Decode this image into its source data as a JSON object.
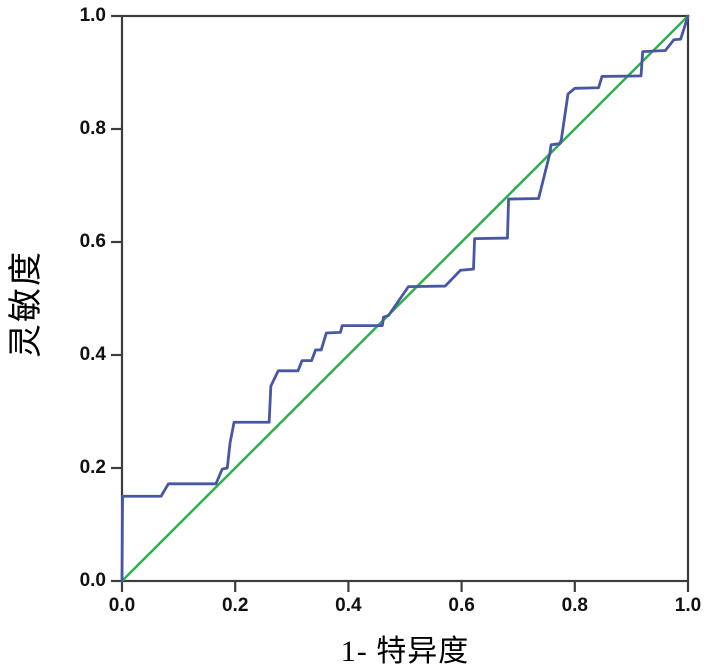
{
  "figure": {
    "background": "#ffffff",
    "axis_color": "#3d3d3d",
    "tick_label_color": "#111111"
  },
  "chart_data": {
    "type": "line",
    "title": "",
    "xlabel": "1- 特异度",
    "ylabel": "灵敏度",
    "xlim": [
      0.0,
      1.0
    ],
    "ylim": [
      0.0,
      1.0
    ],
    "grid": false,
    "legend": "none",
    "x_ticks": [
      "0.0",
      "0.2",
      "0.4",
      "0.6",
      "0.8",
      "1.0"
    ],
    "y_ticks": [
      "0.0",
      "0.2",
      "0.4",
      "0.6",
      "0.8",
      "1.0"
    ],
    "series": [
      {
        "name": "roc-curve",
        "color": "#4757a6",
        "stroke_width": 2.8,
        "points": [
          [
            0.0,
            0.0
          ],
          [
            0.001,
            0.15
          ],
          [
            0.069,
            0.15
          ],
          [
            0.082,
            0.172
          ],
          [
            0.166,
            0.172
          ],
          [
            0.177,
            0.198
          ],
          [
            0.186,
            0.2
          ],
          [
            0.191,
            0.245
          ],
          [
            0.198,
            0.281
          ],
          [
            0.26,
            0.281
          ],
          [
            0.263,
            0.345
          ],
          [
            0.276,
            0.372
          ],
          [
            0.311,
            0.372
          ],
          [
            0.318,
            0.39
          ],
          [
            0.335,
            0.39
          ],
          [
            0.342,
            0.409
          ],
          [
            0.352,
            0.409
          ],
          [
            0.361,
            0.439
          ],
          [
            0.386,
            0.44
          ],
          [
            0.389,
            0.452
          ],
          [
            0.46,
            0.452
          ],
          [
            0.462,
            0.467
          ],
          [
            0.471,
            0.47
          ],
          [
            0.506,
            0.521
          ],
          [
            0.571,
            0.522
          ],
          [
            0.598,
            0.55
          ],
          [
            0.621,
            0.552
          ],
          [
            0.623,
            0.606
          ],
          [
            0.681,
            0.607
          ],
          [
            0.683,
            0.676
          ],
          [
            0.736,
            0.677
          ],
          [
            0.756,
            0.757
          ],
          [
            0.758,
            0.772
          ],
          [
            0.773,
            0.774
          ],
          [
            0.776,
            0.78
          ],
          [
            0.788,
            0.862
          ],
          [
            0.8,
            0.872
          ],
          [
            0.842,
            0.873
          ],
          [
            0.848,
            0.893
          ],
          [
            0.917,
            0.894
          ],
          [
            0.92,
            0.937
          ],
          [
            0.96,
            0.939
          ],
          [
            0.975,
            0.958
          ],
          [
            0.987,
            0.959
          ],
          [
            1.0,
            1.0
          ]
        ]
      },
      {
        "name": "reference-line",
        "color": "#2db04d",
        "stroke_width": 2.5,
        "points": [
          [
            0.0,
            0.0
          ],
          [
            1.0,
            1.0
          ]
        ]
      }
    ]
  }
}
